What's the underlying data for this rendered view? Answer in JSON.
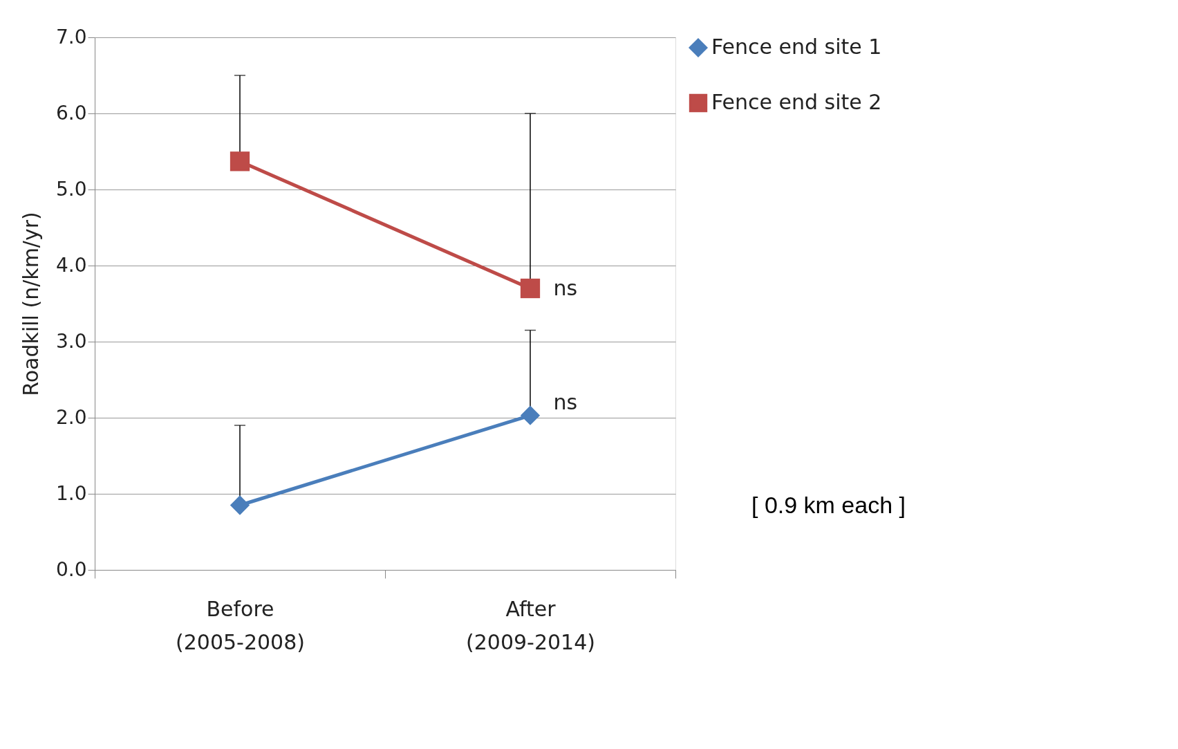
{
  "chart_data": {
    "type": "line",
    "ylabel": "Roadkill (n/km/yr)",
    "categories": [
      "Before\n(2005-2008)",
      "After\n(2009-2014)"
    ],
    "series": [
      {
        "name": "Fence end site 1",
        "color": "#4a7ebb",
        "values": [
          0.85,
          2.03
        ],
        "errors": [
          [
            0.85,
            1.9
          ],
          [
            2.03,
            3.15
          ]
        ],
        "marker": "diamond"
      },
      {
        "name": "Fence end site 2",
        "color": "#be4b48",
        "values": [
          5.37,
          3.7
        ],
        "errors": [
          [
            5.37,
            6.5
          ],
          [
            3.7,
            6.0
          ]
        ],
        "marker": "square"
      }
    ],
    "ylim": [
      0,
      7
    ],
    "yticks": [
      {
        "value": 0,
        "label": "0.0"
      },
      {
        "value": 1,
        "label": "1.0"
      },
      {
        "value": 2,
        "label": "2.0"
      },
      {
        "value": 3,
        "label": "3.0"
      },
      {
        "value": 4,
        "label": "4.0"
      },
      {
        "value": 5,
        "label": "5.0"
      },
      {
        "value": 6,
        "label": "6.0"
      },
      {
        "value": 7,
        "label": "7.0"
      }
    ],
    "grid": "y",
    "legend": "right",
    "line_style": "solid",
    "annotations": [
      "ns",
      "ns",
      "[ 0.9 km each ]"
    ]
  }
}
